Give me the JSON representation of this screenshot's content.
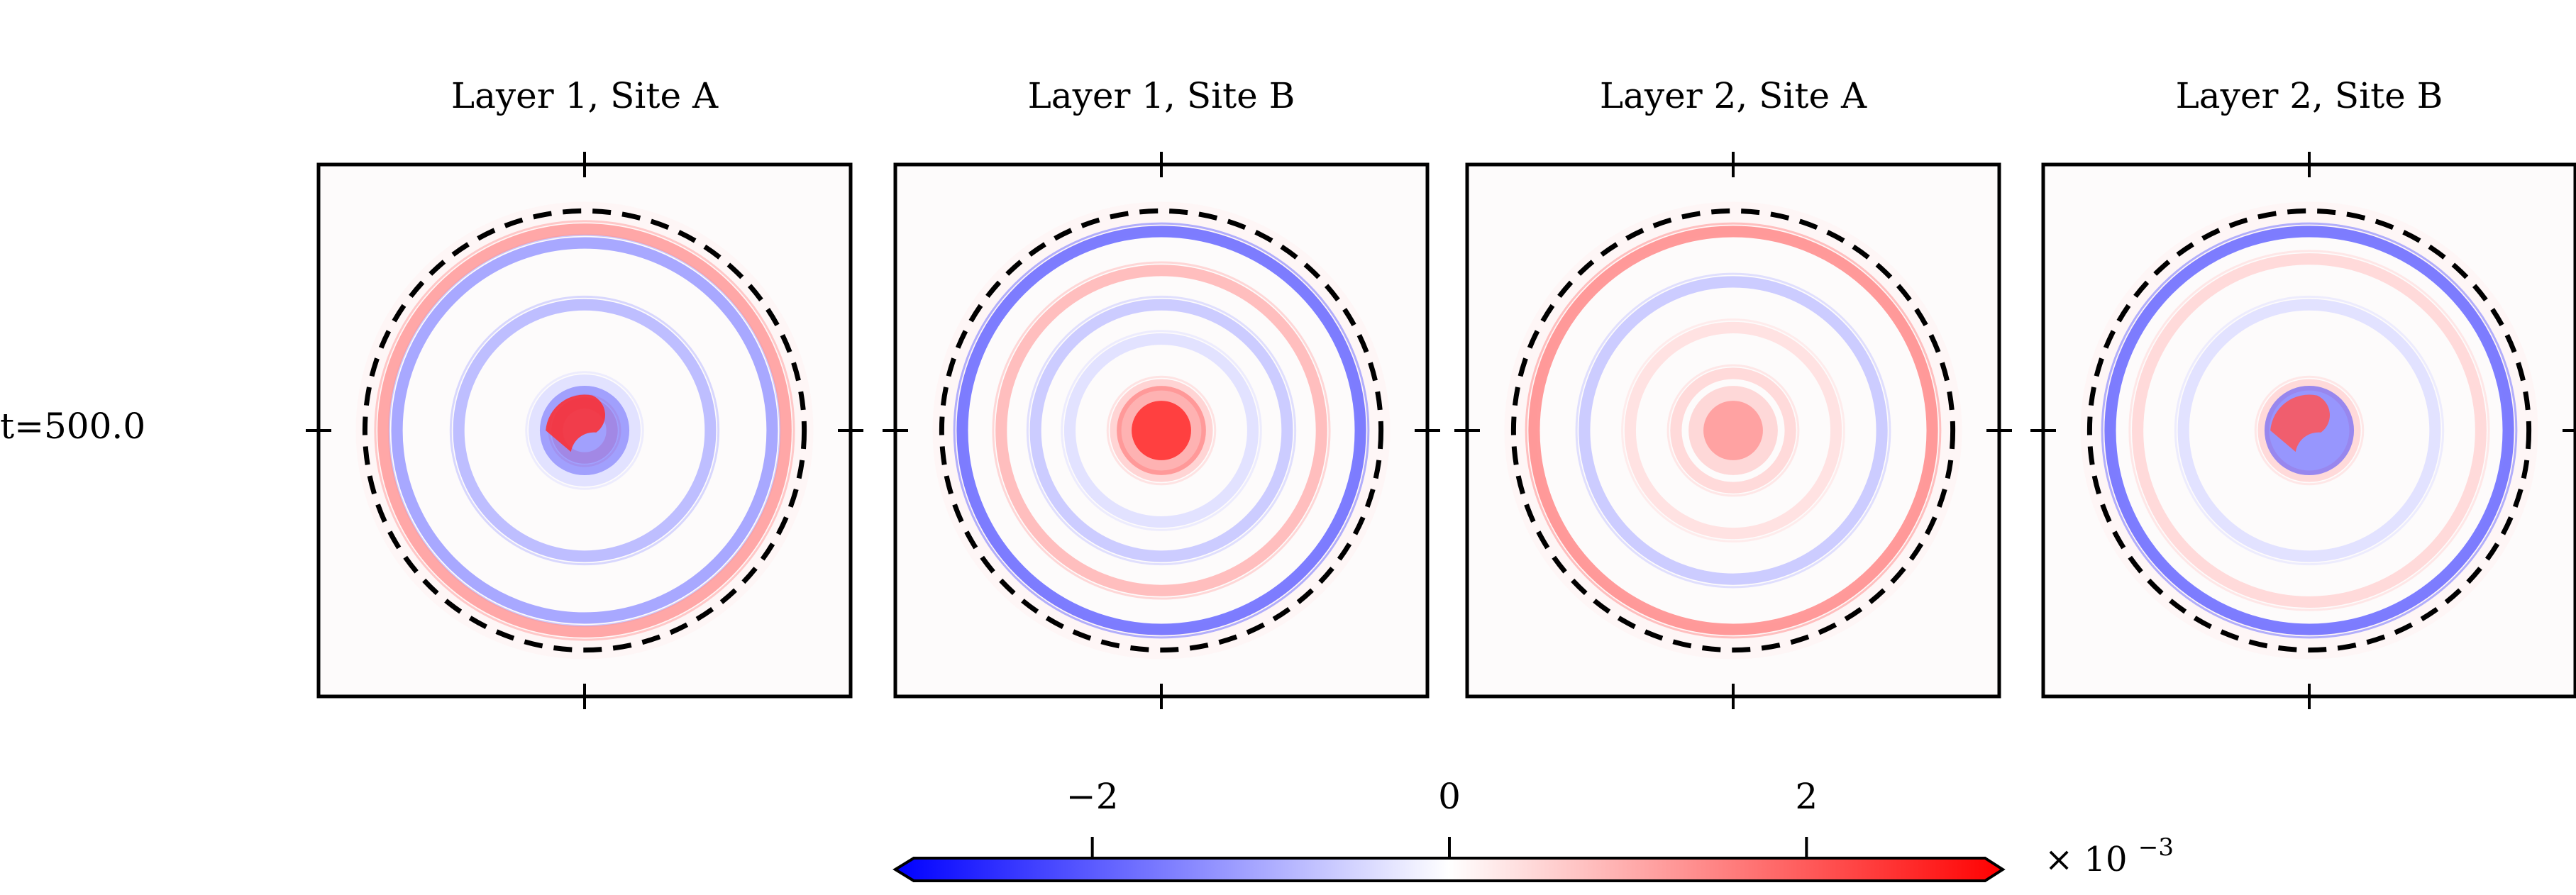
{
  "row_label": "t=500.0",
  "colorbar": {
    "ticks": [
      {
        "value": -2,
        "label": "−2"
      },
      {
        "value": 0,
        "label": "0"
      },
      {
        "value": 2,
        "label": "2"
      }
    ],
    "range": [
      -3,
      3
    ],
    "multiplier_base": "× 10",
    "multiplier_exp": "−3",
    "colors": {
      "neg": "#0000ff",
      "mid": "#ffffff",
      "pos": "#ff0000"
    }
  },
  "chart_data": [
    {
      "type": "heatmap",
      "title": "Layer 1, Site A",
      "xlabel": "",
      "ylabel": "",
      "center_feature": {
        "kind": "spiral",
        "pos_peak": 0.0025,
        "neg_peak": -0.002
      },
      "rings": [
        {
          "radius": 0.12,
          "amplitude": 0.0008
        },
        {
          "radius": 0.22,
          "amplitude": -0.0004
        },
        {
          "radius": 0.55,
          "amplitude": -0.0009
        },
        {
          "radius": 0.82,
          "amplitude": -0.0012
        },
        {
          "radius": 0.88,
          "amplitude": 0.0012
        }
      ],
      "dashed_circle_radius": 0.5,
      "grid": false
    },
    {
      "type": "heatmap",
      "title": "Layer 1, Site B",
      "xlabel": "",
      "ylabel": "",
      "center_feature": {
        "kind": "blob",
        "pos_peak": 0.0025,
        "neg_peak": -0.0005
      },
      "rings": [
        {
          "radius": 0.2,
          "amplitude": 0.0006
        },
        {
          "radius": 0.4,
          "amplitude": -0.0004
        },
        {
          "radius": 0.55,
          "amplitude": -0.0007
        },
        {
          "radius": 0.7,
          "amplitude": 0.0009
        },
        {
          "radius": 0.87,
          "amplitude": -0.0018
        }
      ],
      "dashed_circle_radius": 0.5,
      "grid": false
    },
    {
      "type": "heatmap",
      "title": "Layer 2, Site A",
      "xlabel": "",
      "ylabel": "",
      "center_feature": {
        "kind": "blob",
        "pos_peak": 0.0012,
        "neg_peak": 0
      },
      "rings": [
        {
          "radius": 0.25,
          "amplitude": 0.0005
        },
        {
          "radius": 0.45,
          "amplitude": 0.0004
        },
        {
          "radius": 0.65,
          "amplitude": -0.0007
        },
        {
          "radius": 0.87,
          "amplitude": 0.0014
        }
      ],
      "dashed_circle_radius": 0.5,
      "grid": false
    },
    {
      "type": "heatmap",
      "title": "Layer 2, Site B",
      "xlabel": "",
      "ylabel": "",
      "center_feature": {
        "kind": "spiral",
        "pos_peak": 0.002,
        "neg_peak": -0.0022
      },
      "rings": [
        {
          "radius": 0.2,
          "amplitude": 0.0005
        },
        {
          "radius": 0.55,
          "amplitude": -0.0004
        },
        {
          "radius": 0.75,
          "amplitude": 0.0005
        },
        {
          "radius": 0.87,
          "amplitude": -0.0018
        }
      ],
      "dashed_circle_radius": 0.5,
      "grid": false
    }
  ]
}
